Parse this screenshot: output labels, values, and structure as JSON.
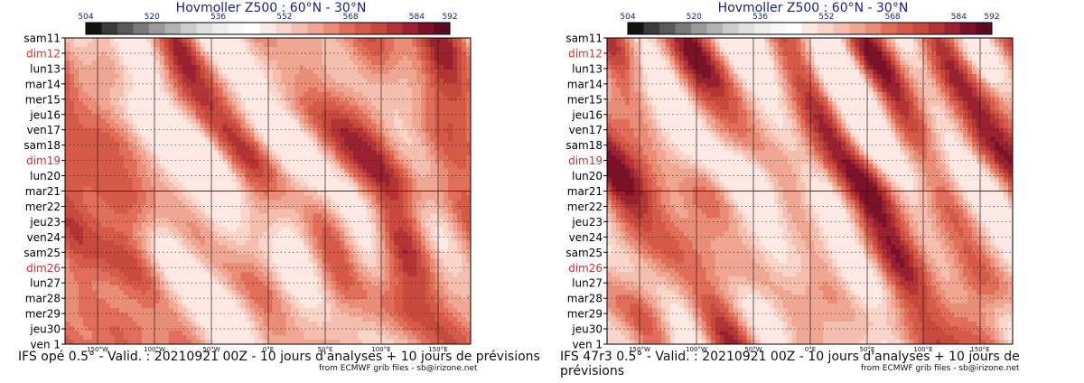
{
  "panels": [
    {
      "title": "Hovmoller Z500 : 60°N - 30°N",
      "caption": "IFS opé 0.5° - Valid. : 20210921 00Z - 10 jours d'analyses + 10 jours de prévisions",
      "credit": "from ECMWF grib files - sb@irizone.net"
    },
    {
      "title": "Hovmoller Z500 : 60°N - 30°N",
      "caption": "IFS 47r3 0.5° - Valid. : 20210921 00Z - 10 jours d'analyses + 10 jours de prévisions",
      "credit": "from ECMWF grib files - sb@irizone.net"
    }
  ],
  "chart_data": [
    {
      "type": "heatmap",
      "title": "Hovmoller Z500 : 60°N - 30°N",
      "colorbar": {
        "labels": [
          "504",
          "520",
          "536",
          "552",
          "568",
          "584",
          "592"
        ],
        "colors": [
          "#111111",
          "#3a3a3a",
          "#5a5a5a",
          "#7a7a7a",
          "#999999",
          "#b2b2b2",
          "#cccccc",
          "#e0e0e0",
          "#eeeeee",
          "#f8f8f8",
          "#ffffff",
          "#fde9e4",
          "#f9d5ca",
          "#f5bfb0",
          "#efa692",
          "#e98d77",
          "#e06e5a",
          "#d65a48",
          "#c84a3e",
          "#b43436",
          "#9a2230",
          "#7c1227",
          "#5c0a20"
        ]
      },
      "y_labels": [
        {
          "text": "sam11",
          "color": "#000000"
        },
        {
          "text": "dim12",
          "color": "#d32f2f"
        },
        {
          "text": "lun13",
          "color": "#000000"
        },
        {
          "text": "mar14",
          "color": "#000000"
        },
        {
          "text": "mer15",
          "color": "#000000"
        },
        {
          "text": "jeu16",
          "color": "#000000"
        },
        {
          "text": "ven17",
          "color": "#000000"
        },
        {
          "text": "sam18",
          "color": "#000000"
        },
        {
          "text": "dim19",
          "color": "#d32f2f"
        },
        {
          "text": "lun20",
          "color": "#000000"
        },
        {
          "text": "mar21",
          "color": "#000000"
        },
        {
          "text": "mer22",
          "color": "#000000"
        },
        {
          "text": "jeu23",
          "color": "#000000"
        },
        {
          "text": "ven24",
          "color": "#000000"
        },
        {
          "text": "sam25",
          "color": "#000000"
        },
        {
          "text": "dim26",
          "color": "#d32f2f"
        },
        {
          "text": "lun27",
          "color": "#000000"
        },
        {
          "text": "mar28",
          "color": "#000000"
        },
        {
          "text": "mer29",
          "color": "#000000"
        },
        {
          "text": "jeu30",
          "color": "#000000"
        },
        {
          "text": "ven 1",
          "color": "#000000"
        }
      ],
      "x_labels": [
        "150°W",
        "100°W",
        "50°W",
        "0°E",
        "50°E",
        "100°E",
        "150°E"
      ],
      "analysis_boundary": "mar21",
      "variant": 0
    },
    {
      "type": "heatmap",
      "title": "Hovmoller Z500 : 60°N - 30°N",
      "colorbar": {
        "labels": [
          "504",
          "520",
          "536",
          "552",
          "568",
          "584",
          "592"
        ],
        "colors": [
          "#111111",
          "#3a3a3a",
          "#5a5a5a",
          "#7a7a7a",
          "#999999",
          "#b2b2b2",
          "#cccccc",
          "#e0e0e0",
          "#eeeeee",
          "#f8f8f8",
          "#ffffff",
          "#fde9e4",
          "#f9d5ca",
          "#f5bfb0",
          "#efa692",
          "#e98d77",
          "#e06e5a",
          "#d65a48",
          "#c84a3e",
          "#b43436",
          "#9a2230",
          "#7c1227",
          "#5c0a20"
        ]
      },
      "y_labels": [
        {
          "text": "sam11",
          "color": "#000000"
        },
        {
          "text": "dim12",
          "color": "#d32f2f"
        },
        {
          "text": "lun13",
          "color": "#000000"
        },
        {
          "text": "mar14",
          "color": "#000000"
        },
        {
          "text": "mer15",
          "color": "#000000"
        },
        {
          "text": "jeu16",
          "color": "#000000"
        },
        {
          "text": "ven17",
          "color": "#000000"
        },
        {
          "text": "sam18",
          "color": "#000000"
        },
        {
          "text": "dim19",
          "color": "#d32f2f"
        },
        {
          "text": "lun20",
          "color": "#000000"
        },
        {
          "text": "mar21",
          "color": "#000000"
        },
        {
          "text": "mer22",
          "color": "#000000"
        },
        {
          "text": "jeu23",
          "color": "#000000"
        },
        {
          "text": "ven24",
          "color": "#000000"
        },
        {
          "text": "sam25",
          "color": "#000000"
        },
        {
          "text": "dim26",
          "color": "#d32f2f"
        },
        {
          "text": "lun27",
          "color": "#000000"
        },
        {
          "text": "mar28",
          "color": "#000000"
        },
        {
          "text": "mer29",
          "color": "#000000"
        },
        {
          "text": "jeu30",
          "color": "#000000"
        },
        {
          "text": "ven 1",
          "color": "#000000"
        }
      ],
      "x_labels": [
        "150°W",
        "100°W",
        "50°W",
        "0°E",
        "50°E",
        "100°E",
        "150°E"
      ],
      "analysis_boundary": "mar21",
      "variant": 1
    }
  ]
}
